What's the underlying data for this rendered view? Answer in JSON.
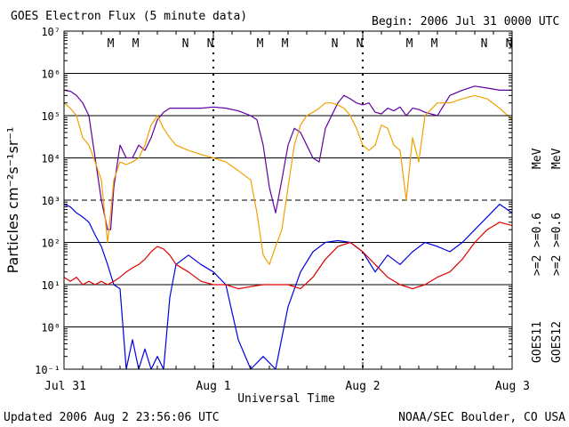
{
  "chart_data": {
    "type": "line",
    "title": "GOES Electron Flux (5 minute data)",
    "begin_label": "Begin: 2006 Jul 31 0000 UTC",
    "xlabel": "Universal Time",
    "ylabel": "Particles cm⁻²s⁻¹sr⁻¹",
    "ylim": [
      0.1,
      10000000
    ],
    "yscale": "log",
    "y_ticks": [
      "10⁻¹",
      "10⁰",
      "10¹",
      "10²",
      "10³",
      "10⁴",
      "10⁵",
      "10⁶",
      "10⁷"
    ],
    "x_range_hours": [
      0,
      72
    ],
    "x_ticks": [
      {
        "label": "Jul 31",
        "hour": 0
      },
      {
        "label": "Aug 1",
        "hour": 24
      },
      {
        "label": "Aug 2",
        "hour": 48
      },
      {
        "label": "Aug 3",
        "hour": 72
      }
    ],
    "markers": [
      {
        "label": "M",
        "hour": 7.5,
        "color": "#e00000"
      },
      {
        "label": "M",
        "hour": 11.5,
        "color": "#0000e0"
      },
      {
        "label": "N",
        "hour": 19.5,
        "color": "#e00000"
      },
      {
        "label": "N",
        "hour": 23.5,
        "color": "#0000e0"
      },
      {
        "label": "M",
        "hour": 31.5,
        "color": "#e00000"
      },
      {
        "label": "M",
        "hour": 35.5,
        "color": "#0000e0"
      },
      {
        "label": "N",
        "hour": 43.5,
        "color": "#e00000"
      },
      {
        "label": "N",
        "hour": 47.5,
        "color": "#0000e0"
      },
      {
        "label": "M",
        "hour": 55.5,
        "color": "#e00000"
      },
      {
        "label": "M",
        "hour": 59.5,
        "color": "#0000e0"
      },
      {
        "label": "N",
        "hour": 67.5,
        "color": "#e00000"
      },
      {
        "label": "N",
        "hour": 71.5,
        "color": "#0000e0"
      }
    ],
    "legend": [
      {
        "satellite": "GOES11",
        "items": [
          {
            "label": ">=2",
            "color": "#0000e0"
          },
          {
            "label": ">=0.6",
            "color": "#6000a0"
          }
        ]
      },
      {
        "satellite": "GOES12",
        "items": [
          {
            "label": ">=2",
            "color": "#e00000"
          },
          {
            "label": ">=0.6",
            "color": "#f0a000"
          }
        ]
      }
    ],
    "legend_unit": "MeV",
    "series": [
      {
        "name": "GOES11 >=0.6 MeV",
        "color": "#6000a0",
        "x": [
          0,
          1,
          2,
          3,
          4,
          5,
          6,
          7,
          7.5,
          8,
          9,
          10,
          11,
          12,
          13,
          14,
          15,
          16,
          17,
          18,
          20,
          22,
          24,
          26,
          28,
          30,
          31,
          32,
          33,
          34,
          35,
          36,
          37,
          38,
          39,
          40,
          41,
          42,
          43,
          44,
          45,
          46,
          47,
          48,
          49,
          50,
          51,
          52,
          53,
          54,
          55,
          56,
          57,
          58,
          60,
          62,
          64,
          66,
          68,
          70,
          72
        ],
        "y": [
          400000,
          380000,
          300000,
          200000,
          100000,
          10000,
          1000,
          200,
          200,
          2000,
          20000,
          10000,
          10000,
          20000,
          15000,
          30000,
          80000,
          120000,
          150000,
          150000,
          150000,
          150000,
          160000,
          150000,
          130000,
          100000,
          80000,
          20000,
          2000,
          500,
          3000,
          20000,
          50000,
          40000,
          20000,
          10000,
          8000,
          50000,
          100000,
          200000,
          300000,
          250000,
          200000,
          180000,
          200000,
          120000,
          110000,
          150000,
          130000,
          160000,
          100000,
          150000,
          140000,
          120000,
          100000,
          300000,
          400000,
          500000,
          450000,
          400000,
          400000
        ]
      },
      {
        "name": "GOES12 >=0.6 MeV",
        "color": "#f0a000",
        "x": [
          0,
          1,
          2,
          3,
          4,
          5,
          6,
          7,
          7.5,
          8,
          9,
          10,
          11,
          12,
          13,
          14,
          15,
          16,
          17,
          18,
          20,
          22,
          24,
          26,
          28,
          30,
          31,
          32,
          33,
          34,
          35,
          36,
          37,
          38,
          39,
          40,
          41,
          42,
          43,
          44,
          45,
          46,
          47,
          48,
          49,
          50,
          51,
          52,
          53,
          54,
          55,
          56,
          57,
          58,
          60,
          62,
          64,
          66,
          68,
          70,
          72
        ],
        "y": [
          200000,
          150000,
          100000,
          30000,
          20000,
          8000,
          3000,
          100,
          500,
          3000,
          8000,
          7000,
          8000,
          10000,
          20000,
          60000,
          100000,
          50000,
          30000,
          20000,
          15000,
          12000,
          10000,
          8000,
          5000,
          3000,
          500,
          50,
          30,
          80,
          200,
          2000,
          20000,
          60000,
          100000,
          120000,
          150000,
          200000,
          200000,
          180000,
          150000,
          100000,
          50000,
          20000,
          15000,
          20000,
          60000,
          50000,
          20000,
          15000,
          1000,
          30000,
          8000,
          100000,
          200000,
          200000,
          250000,
          300000,
          250000,
          150000,
          80000
        ]
      },
      {
        "name": "GOES11 >=2 MeV",
        "color": "#0000e0",
        "x": [
          0,
          1,
          2,
          3,
          4,
          5,
          6,
          7,
          8,
          9,
          10,
          11,
          12,
          13,
          14,
          15,
          16,
          17,
          18,
          20,
          22,
          24,
          26,
          28,
          30,
          32,
          34,
          36,
          38,
          40,
          42,
          44,
          46,
          48,
          50,
          52,
          54,
          56,
          58,
          60,
          62,
          64,
          66,
          68,
          70,
          72
        ],
        "y": [
          800,
          700,
          500,
          400,
          300,
          150,
          80,
          30,
          10,
          8,
          0.1,
          0.5,
          0.1,
          0.3,
          0.1,
          0.2,
          0.1,
          5,
          30,
          50,
          30,
          20,
          10,
          0.5,
          0.1,
          0.2,
          0.1,
          3,
          20,
          60,
          100,
          110,
          100,
          60,
          20,
          50,
          30,
          60,
          100,
          80,
          60,
          100,
          200,
          400,
          800,
          500
        ]
      },
      {
        "name": "GOES12 >=2 MeV",
        "color": "#e00000",
        "x": [
          0,
          1,
          2,
          3,
          4,
          5,
          6,
          7,
          8,
          9,
          10,
          11,
          12,
          13,
          14,
          15,
          16,
          17,
          18,
          20,
          22,
          24,
          26,
          28,
          30,
          32,
          34,
          36,
          38,
          40,
          42,
          44,
          46,
          48,
          50,
          52,
          54,
          56,
          58,
          60,
          62,
          64,
          66,
          68,
          70,
          72
        ],
        "y": [
          15,
          12,
          15,
          10,
          12,
          10,
          12,
          10,
          12,
          15,
          20,
          25,
          30,
          40,
          60,
          80,
          70,
          50,
          30,
          20,
          12,
          10,
          10,
          8,
          9,
          10,
          10,
          10,
          8,
          15,
          40,
          80,
          100,
          60,
          30,
          15,
          10,
          8,
          10,
          15,
          20,
          40,
          100,
          200,
          300,
          250
        ]
      }
    ]
  },
  "footer": {
    "updated": "Updated 2006 Aug  2 23:56:06 UTC",
    "credit": "NOAA/SEC Boulder, CO USA"
  },
  "colors": {
    "goes11_high": "#0000e0",
    "goes11_low": "#6000a0",
    "goes12_high": "#e00000",
    "goes12_low": "#f0a000"
  }
}
